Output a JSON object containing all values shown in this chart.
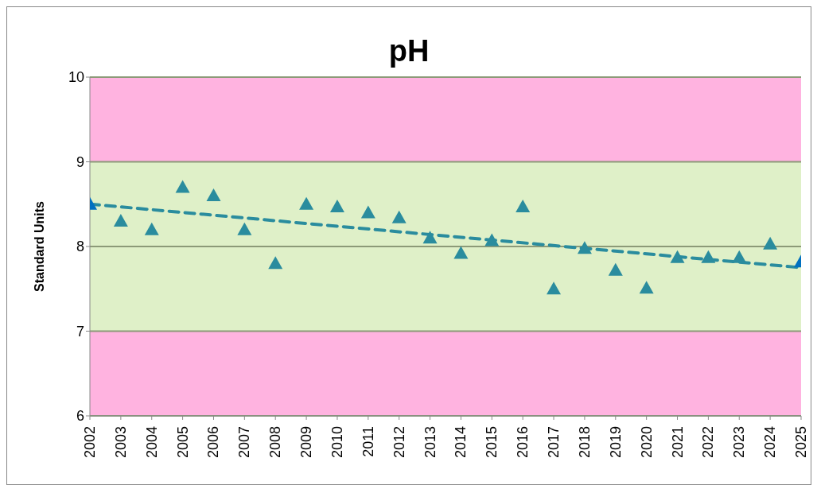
{
  "chart_data": {
    "type": "scatter",
    "title": "pH",
    "ylabel": "Standard Units",
    "x": [
      2002,
      2003,
      2004,
      2005,
      2006,
      2007,
      2008,
      2009,
      2010,
      2011,
      2012,
      2013,
      2014,
      2015,
      2016,
      2017,
      2018,
      2019,
      2020,
      2021,
      2022,
      2023,
      2024,
      2025
    ],
    "series": [
      {
        "color": "#2a8c9e",
        "colors": [
          "#0070c0",
          "#2a8c9e",
          "#2a8c9e",
          "#2a8c9e",
          "#2a8c9e",
          "#2a8c9e",
          "#2a8c9e",
          "#2a8c9e",
          "#2a8c9e",
          "#2a8c9e",
          "#2a8c9e",
          "#2a8c9e",
          "#2a8c9e",
          "#2a8c9e",
          "#2a8c9e",
          "#2a8c9e",
          "#2a8c9e",
          "#2a8c9e",
          "#2a8c9e",
          "#2a8c9e",
          "#2a8c9e",
          "#2a8c9e",
          "#2a8c9e",
          "#0070c0"
        ],
        "marker": "triangle",
        "values": [
          8.5,
          8.3,
          8.2,
          8.7,
          8.6,
          8.2,
          7.8,
          8.5,
          8.47,
          8.4,
          8.34,
          8.1,
          7.92,
          8.07,
          8.47,
          7.5,
          7.98,
          7.72,
          7.51,
          7.87,
          7.87,
          7.87,
          8.03,
          7.82
        ]
      },
      {
        "type": "line",
        "color": "#2a8c9e",
        "line_style": "dashed",
        "x": [
          2002,
          2025
        ],
        "values": [
          8.5,
          7.75
        ]
      }
    ],
    "bands": [
      {
        "axis": "y",
        "from": 9,
        "to": 10,
        "color": "#ffb3e0"
      },
      {
        "axis": "y",
        "from": 7,
        "to": 9,
        "color": "#dff0c8"
      },
      {
        "axis": "y",
        "from": 6,
        "to": 7,
        "color": "#ffb3e0"
      }
    ],
    "xlim": [
      2002,
      2025
    ],
    "xticks": [
      2002,
      2003,
      2004,
      2005,
      2006,
      2007,
      2008,
      2009,
      2010,
      2011,
      2012,
      2013,
      2014,
      2015,
      2016,
      2017,
      2018,
      2019,
      2020,
      2021,
      2022,
      2023,
      2024,
      2025
    ],
    "ylim": [
      6,
      10
    ],
    "yticks": [
      6,
      7,
      8,
      9,
      10
    ],
    "grid": "y",
    "legend": false
  }
}
